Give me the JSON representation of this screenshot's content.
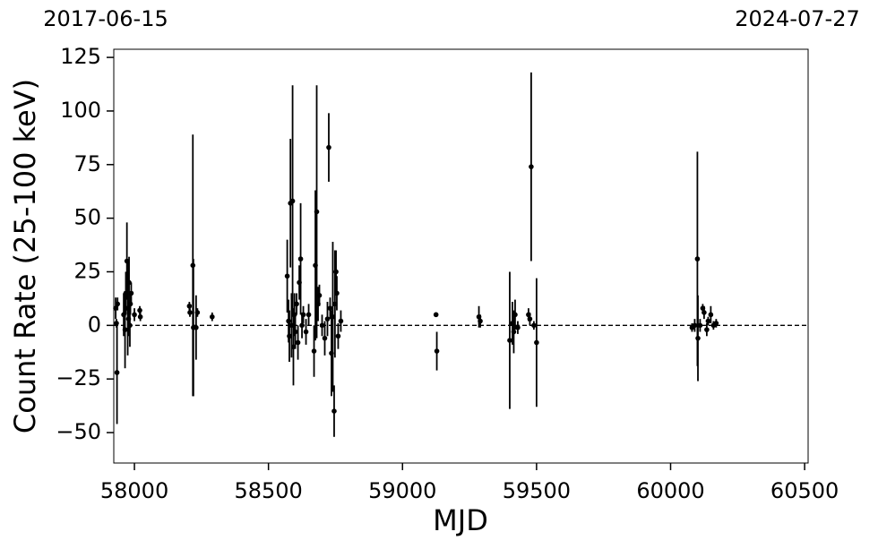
{
  "chart_data": {
    "type": "errorbar",
    "annotations": [
      "2017-06-15",
      "2024-07-27"
    ],
    "xlabel": "MJD",
    "ylabel": "Count Rate (25-100 keV)",
    "xlim": [
      57923,
      60513
    ],
    "ylim": [
      -64.2,
      128.8
    ],
    "xticks": [
      58000,
      58500,
      59000,
      59500,
      60000,
      60500
    ],
    "yticks": [
      {
        "value": -50,
        "label": "−50"
      },
      {
        "value": -25,
        "label": "−25"
      },
      0,
      25,
      50,
      75,
      100,
      125
    ],
    "hline": 0,
    "color": "#000000",
    "x": [
      57930,
      57933,
      57935,
      57937,
      57960,
      57965,
      57968,
      57972,
      57975,
      57978,
      57980,
      57983,
      57985,
      57988,
      58000,
      58020,
      58022,
      58205,
      58207,
      58218,
      58220,
      58230,
      58235,
      58290,
      58570,
      58575,
      58578,
      58582,
      58586,
      58590,
      58593,
      58597,
      58600,
      58605,
      58610,
      58615,
      58620,
      58625,
      58630,
      58640,
      58650,
      58670,
      58675,
      58680,
      58685,
      58690,
      58700,
      58710,
      58720,
      58725,
      58730,
      58735,
      58740,
      58745,
      58748,
      58752,
      58755,
      58760,
      58770,
      59125,
      59128,
      59285,
      59290,
      59400,
      59410,
      59415,
      59420,
      59430,
      59470,
      59475,
      59480,
      59490,
      59500,
      60080,
      60090,
      60100,
      60102,
      60110,
      60120,
      60125,
      60135,
      60140,
      60150,
      60160,
      60170
    ],
    "values": [
      8,
      1,
      -22,
      10,
      5,
      -2,
      15,
      30,
      8,
      3,
      20,
      0,
      10,
      15,
      5,
      7,
      4,
      9,
      6,
      28,
      -1,
      -1,
      6,
      4,
      23,
      2,
      -5,
      57,
      0,
      58,
      -10,
      5,
      -3,
      10,
      -8,
      20,
      31,
      0,
      5,
      -3,
      5,
      -12,
      28,
      53,
      10,
      14,
      0,
      -6,
      3,
      83,
      8,
      -13,
      4,
      -40,
      10,
      25,
      15,
      -5,
      2,
      5,
      -12,
      4,
      2,
      -7,
      1,
      -3,
      5,
      -1,
      5,
      3,
      74,
      0,
      -8,
      -1,
      0,
      31,
      -6,
      0,
      8,
      6,
      -2,
      2,
      5,
      0,
      1
    ],
    "errors": [
      5,
      2,
      24,
      3,
      10,
      18,
      10,
      18,
      22,
      8,
      12,
      10,
      5,
      5,
      3,
      2,
      2,
      2,
      2,
      61,
      32,
      15,
      2,
      2,
      17,
      10,
      12,
      30,
      15,
      54,
      18,
      10,
      8,
      5,
      8,
      8,
      26,
      6,
      4,
      6,
      5,
      12,
      35,
      59,
      8,
      5,
      5,
      8,
      8,
      16,
      5,
      20,
      35,
      12,
      25,
      10,
      8,
      6,
      5,
      1,
      9,
      5,
      3,
      32,
      10,
      10,
      7,
      3,
      3,
      3,
      44,
      2,
      30,
      2,
      3,
      50,
      20,
      3,
      2,
      3,
      3,
      2,
      4,
      2,
      2
    ]
  }
}
